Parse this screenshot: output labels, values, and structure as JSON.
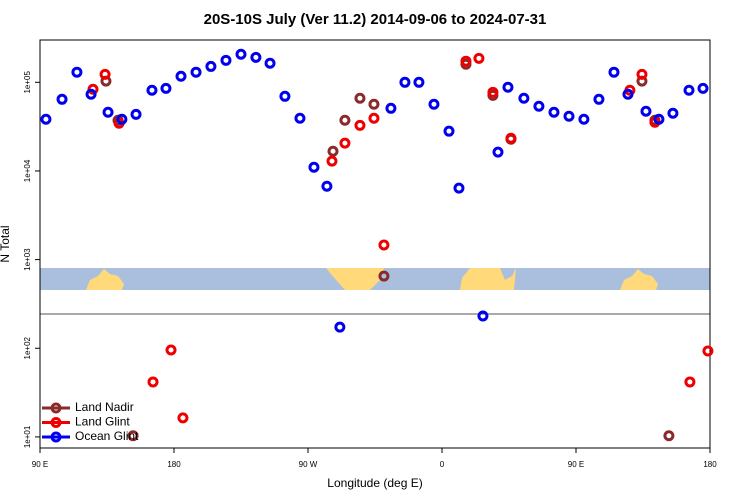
{
  "chart_data": {
    "type": "scatter",
    "title": "20S-10S July (Ver 11.2)   2014-09-06 to 2024-07-31",
    "xlabel": "Longitude (deg E)",
    "ylabel": "N Total",
    "xlim": [
      90,
      540
    ],
    "ylim": [
      7.5,
      300000
    ],
    "log_y": true,
    "legend": "lower left",
    "xticks": [
      {
        "value": 90,
        "label": "90 E"
      },
      180,
      {
        "value": 270,
        "label": "90 W"
      },
      {
        "value": 360,
        "label": "0"
      },
      {
        "value": 450,
        "label": "90 E"
      },
      {
        "value": 540,
        "label": "180"
      }
    ],
    "yticks": [
      {
        "value": 10,
        "label": "1e+01"
      },
      {
        "value": 100,
        "label": "1e+02"
      },
      {
        "value": 1000,
        "label": "1e+03"
      },
      {
        "value": 10000,
        "label": "1e+04"
      },
      {
        "value": 100000,
        "label": "1e+05"
      }
    ],
    "series": [
      {
        "name": "Land Nadir",
        "color": "#8b2a2a",
        "x": [
          134.3,
          142.4,
          152.5,
          286.8,
          294.8,
          304.9,
          314.3,
          321,
          376.1,
          394.2,
          406.3,
          494.3,
          503,
          512.4
        ],
        "values": [
          103000,
          37300,
          10.3,
          16700,
          37300,
          66100,
          56500,
          652,
          160000,
          71300,
          22800,
          103000,
          37300,
          10.3
        ]
      },
      {
        "name": "Land Glint",
        "color": "#ee0000",
        "x": [
          125.6,
          133.7,
          143.1,
          165.9,
          178,
          186,
          286.1,
          294.8,
          304.9,
          314.3,
          321,
          376.1,
          384.8,
          394.2,
          406.3,
          486.2,
          494.3,
          503,
          526.5,
          538.6
        ],
        "values": [
          83400,
          123000,
          34500,
          41.7,
          95.5,
          16.4,
          12900,
          20600,
          32700,
          39300,
          1460,
          173000,
          186000,
          77100,
          23400,
          81300,
          123000,
          35400,
          41.7,
          93.1
        ]
      },
      {
        "name": "Ocean Glint",
        "color": "#0000ee",
        "x": [
          94,
          104.8,
          114.8,
          124.3,
          135.7,
          145,
          154.5,
          165.2,
          174.6,
          184.7,
          194.8,
          204.8,
          214.9,
          225,
          235,
          244.5,
          254.5,
          264.6,
          274,
          282.7,
          291.4,
          325.7,
          335.1,
          344.5,
          354.6,
          364.7,
          371.4,
          387.5,
          397.6,
          404.3,
          415,
          425.1,
          435.2,
          445.3,
          455.3,
          465.4,
          475.5,
          484.9,
          497,
          505.7,
          515.1,
          525.9,
          535.3
        ],
        "values": [
          38300,
          64300,
          130000,
          73300,
          45900,
          38300,
          43500,
          81300,
          85500,
          117000,
          130000,
          151000,
          177000,
          207000,
          191000,
          164000,
          69500,
          39300,
          11000,
          6730,
          173,
          50900,
          100000,
          100000,
          56500,
          28100,
          6400,
          231,
          16300,
          87900,
          66100,
          53700,
          45900,
          41400,
          38300,
          64300,
          130000,
          73300,
          47100,
          38300,
          44800,
          81300,
          85500
        ]
      }
    ]
  }
}
